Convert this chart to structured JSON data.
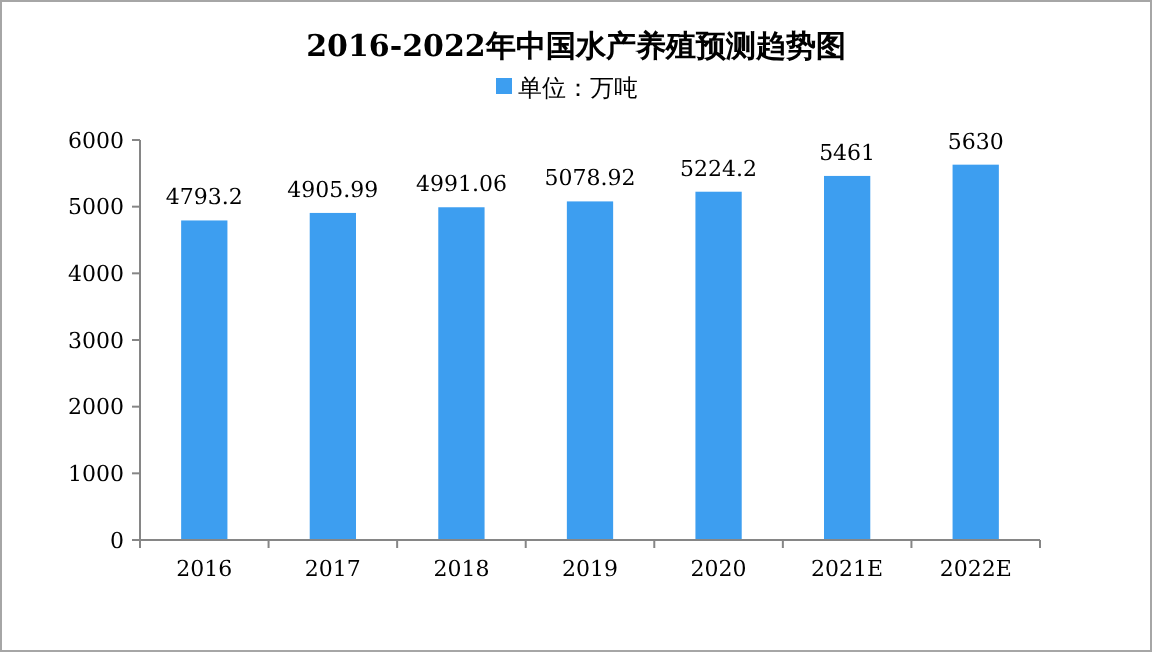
{
  "chart_data": {
    "type": "bar",
    "title": "2016-2022年中国水产养殖预测趋势图",
    "categories": [
      "2016",
      "2017",
      "2018",
      "2019",
      "2020",
      "2021E",
      "2022E"
    ],
    "series": [
      {
        "name": "单位：万吨",
        "color": "#3d9ef0",
        "values": [
          4793.2,
          4905.99,
          4991.06,
          5078.92,
          5224.2,
          5461,
          5630
        ]
      }
    ],
    "ylim": [
      0,
      6000
    ],
    "yticks": [
      0,
      1000,
      2000,
      3000,
      4000,
      5000,
      6000
    ],
    "data_labels": true,
    "legend": "top",
    "grid": false
  }
}
